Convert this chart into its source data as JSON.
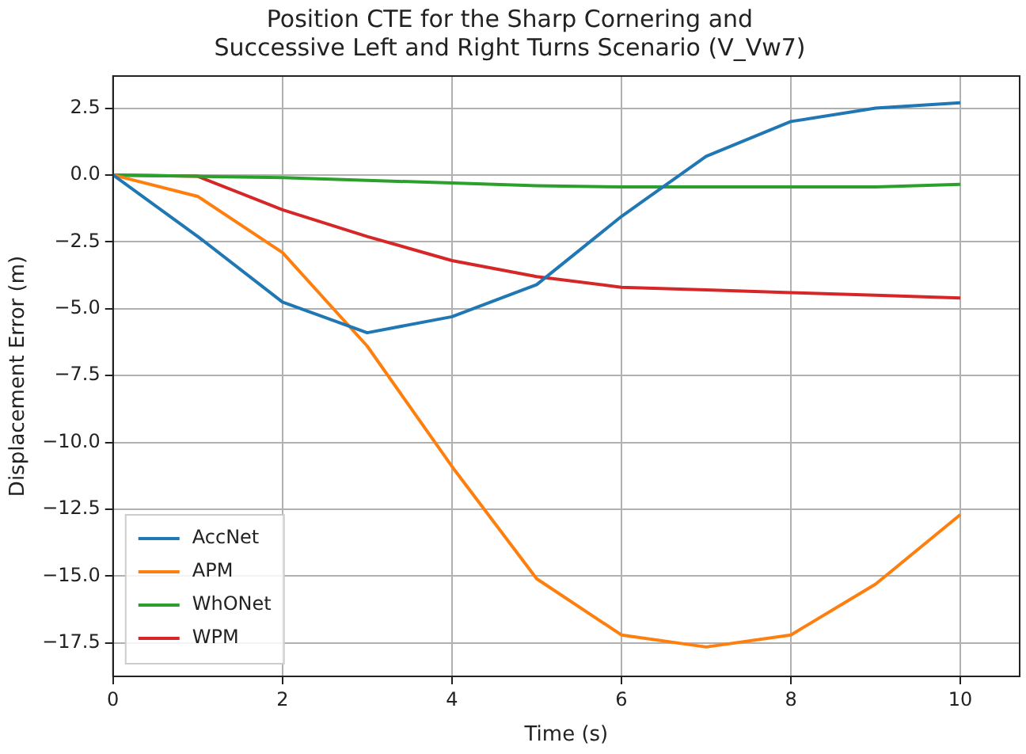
{
  "chart_data": {
    "type": "line",
    "title": "Position CTE for the Sharp Cornering and\nSuccessive Left and Right Turns Scenario (V_Vw7)",
    "xlabel": "Time (s)",
    "ylabel": "Displacement Error (m)",
    "x": [
      0,
      1,
      2,
      3,
      4,
      5,
      6,
      7,
      8,
      9,
      10
    ],
    "series": [
      {
        "name": "AccNet",
        "color": "#1f77b4",
        "values": [
          0,
          -2.3,
          -4.75,
          -5.9,
          -5.3,
          -4.1,
          -1.55,
          0.7,
          2.0,
          2.5,
          2.7
        ]
      },
      {
        "name": "APM",
        "color": "#ff7f0e",
        "values": [
          0,
          -0.8,
          -2.9,
          -6.4,
          -10.9,
          -15.1,
          -17.2,
          -17.65,
          -17.2,
          -15.3,
          -12.7
        ]
      },
      {
        "name": "WhONet",
        "color": "#2ca02c",
        "values": [
          0,
          -0.05,
          -0.1,
          -0.2,
          -0.3,
          -0.4,
          -0.45,
          -0.45,
          -0.45,
          -0.45,
          -0.35
        ]
      },
      {
        "name": "WPM",
        "color": "#d62728",
        "values": [
          0,
          -0.05,
          -1.3,
          -2.3,
          -3.2,
          -3.8,
          -4.2,
          -4.3,
          -4.4,
          -4.5,
          -4.6
        ]
      }
    ],
    "xlim": [
      0,
      10.7
    ],
    "xticks": [
      0,
      2,
      4,
      6,
      8,
      10
    ],
    "ylim": [
      -18.75,
      3.7
    ],
    "yticks": [
      {
        "value": 2.5,
        "label": "2.5"
      },
      {
        "value": 0,
        "label": "0.0"
      },
      {
        "value": -2.5,
        "label": "−2.5"
      },
      {
        "value": -5,
        "label": "−5.0"
      },
      {
        "value": -7.5,
        "label": "−7.5"
      },
      {
        "value": -10,
        "label": "−10.0"
      },
      {
        "value": -12.5,
        "label": "−12.5"
      },
      {
        "value": -15,
        "label": "−15.0"
      },
      {
        "value": -17.5,
        "label": "−17.5"
      }
    ],
    "grid": true,
    "legend": "bottom left",
    "marker": "none",
    "line_style": "solid"
  }
}
